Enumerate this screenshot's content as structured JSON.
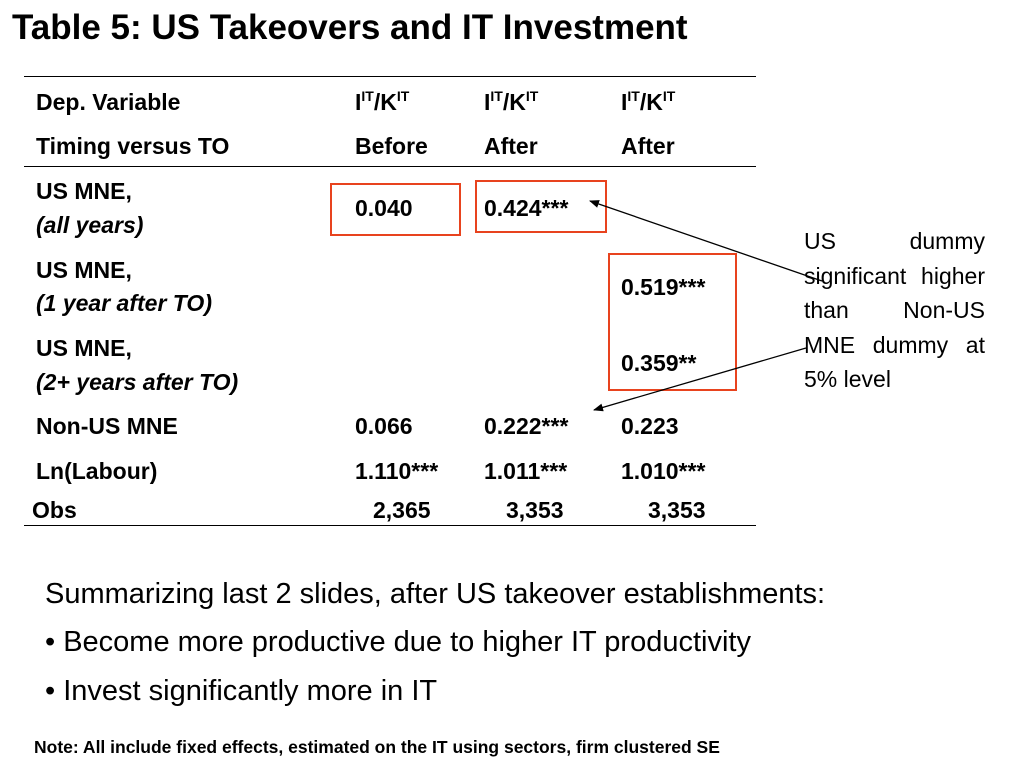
{
  "slide": {
    "title": "Table 5: US Takeovers and IT Investment"
  },
  "table": {
    "dep_variable_label": "Dep. Variable",
    "dep_var_base": "I",
    "dep_var_sup": "IT",
    "dep_var_slash": "/K",
    "timing_label": "Timing versus TO",
    "timing": [
      "Before",
      "After",
      "After"
    ],
    "rows": [
      {
        "label": "US MNE,",
        "sub": "(all years)",
        "values": [
          "0.040",
          "0.424***",
          ""
        ]
      },
      {
        "label": "US MNE,",
        "sub": "(1 year after TO)",
        "values": [
          "",
          "",
          "0.519***"
        ]
      },
      {
        "label": "US MNE,",
        "sub": "(2+ years after TO)",
        "values": [
          "",
          "",
          "0.359**"
        ]
      },
      {
        "label": "Non-US MNE",
        "values": [
          "0.066",
          "0.222***",
          "0.223"
        ]
      },
      {
        "label": "Ln(Labour)",
        "values": [
          "1.110***",
          "1.011***",
          "1.010***"
        ]
      },
      {
        "label": "Obs",
        "values": [
          "2,365",
          "3,353",
          "3,353"
        ]
      }
    ]
  },
  "annotation": {
    "text": "US dummy significant higher than Non-US MNE dummy at 5% level",
    "highlight_color": "#e8431e"
  },
  "summary": {
    "intro": "Summarizing last 2 slides, after US takeover establishments:",
    "bullets": [
      "• Become more productive due to higher IT productivity",
      "• Invest significantly more in IT"
    ]
  },
  "footnote": "Note: All include fixed effects, estimated on the IT using sectors, firm clustered SE"
}
